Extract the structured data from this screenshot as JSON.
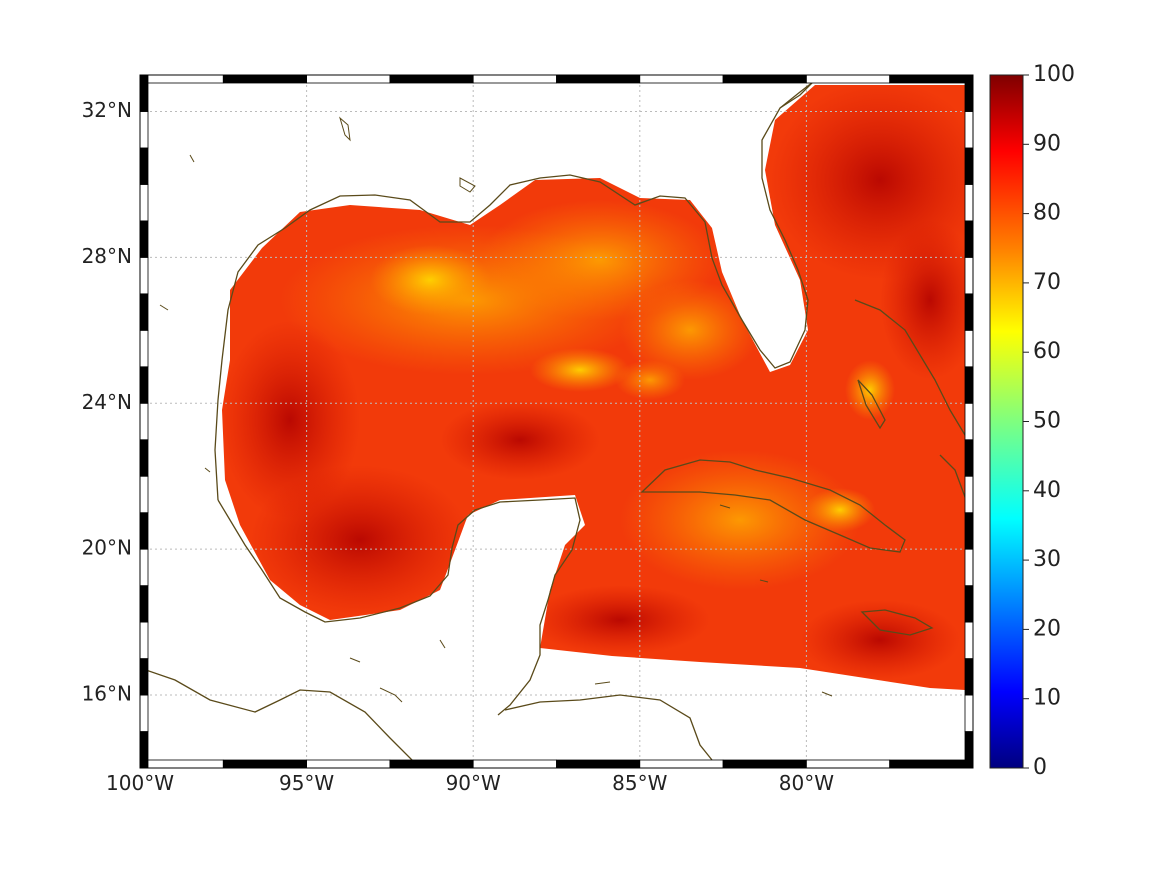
{
  "map": {
    "lon_range": [
      -100,
      -75
    ],
    "lat_range": [
      14,
      33
    ],
    "lat_ticks": [
      {
        "value": 32,
        "label": "32°N"
      },
      {
        "value": 28,
        "label": "28°N"
      },
      {
        "value": 24,
        "label": "24°N"
      },
      {
        "value": 20,
        "label": "20°N"
      },
      {
        "value": 16,
        "label": "16°N"
      }
    ],
    "lon_ticks": [
      {
        "value": -100,
        "label": "100°W"
      },
      {
        "value": -95,
        "label": "95°W"
      },
      {
        "value": -90,
        "label": "90°W"
      },
      {
        "value": -85,
        "label": "85°W"
      },
      {
        "value": -80,
        "label": "80°W"
      }
    ],
    "grid": true,
    "coastline_color": "#5a4a1a",
    "land_color": "#ffffff"
  },
  "colorbar": {
    "min": 0,
    "max": 100,
    "ticks": [
      {
        "value": 100,
        "label": "100"
      },
      {
        "value": 90,
        "label": "90"
      },
      {
        "value": 80,
        "label": "80"
      },
      {
        "value": 70,
        "label": "70"
      },
      {
        "value": 60,
        "label": "60"
      },
      {
        "value": 50,
        "label": "50"
      },
      {
        "value": 40,
        "label": "40"
      },
      {
        "value": 30,
        "label": "30"
      },
      {
        "value": 20,
        "label": "20"
      },
      {
        "value": 10,
        "label": "10"
      },
      {
        "value": 0,
        "label": "0"
      }
    ],
    "colormap": [
      "#00007f",
      "#0000ff",
      "#007fff",
      "#00ffff",
      "#7fff7f",
      "#ffff00",
      "#ff7f00",
      "#ff0000",
      "#7f0000"
    ]
  }
}
